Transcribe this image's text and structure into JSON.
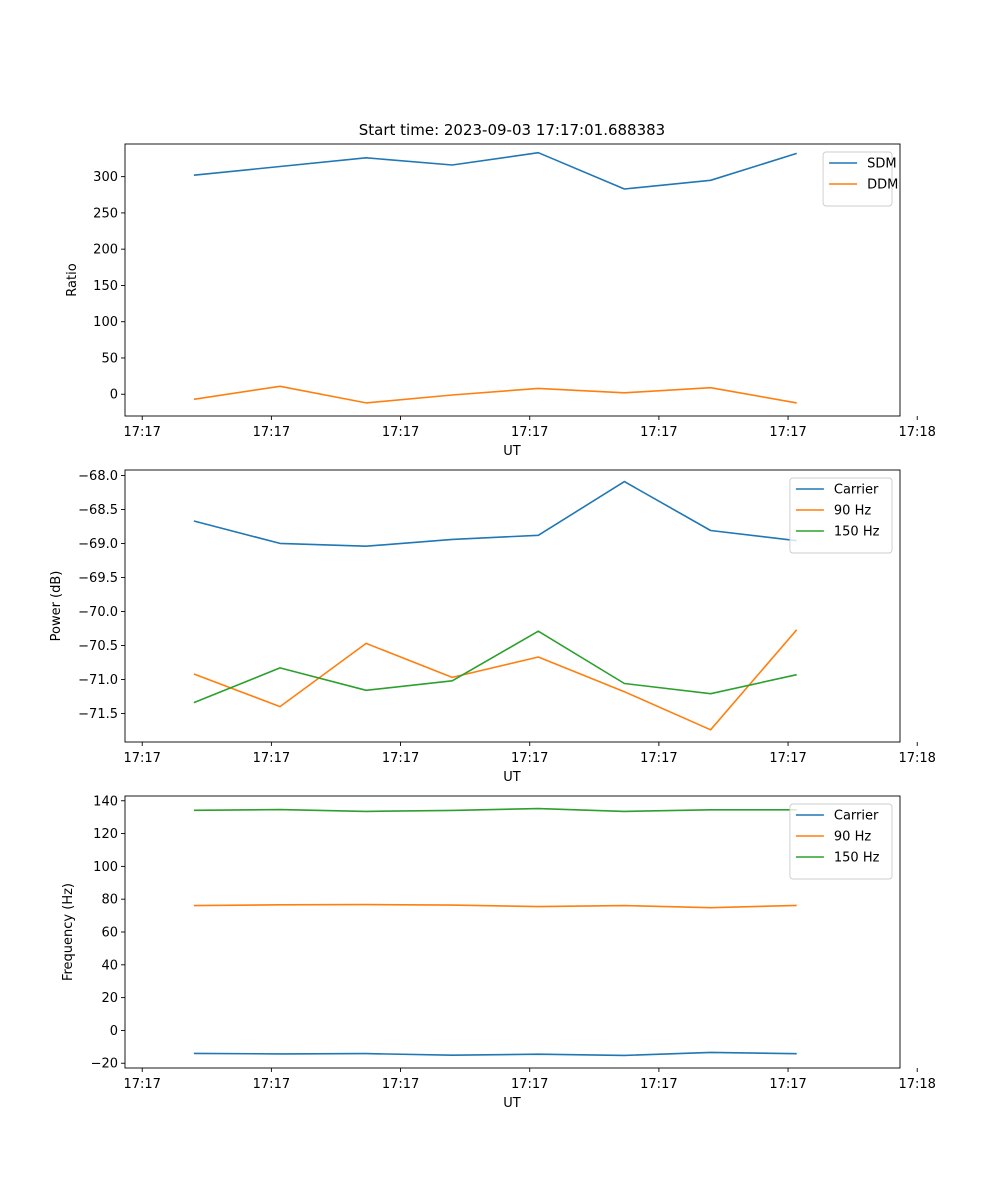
{
  "figure_title": "Start time: 2023-09-03 17:17:01.688383",
  "colors": {
    "blue": "#1f77b4",
    "orange": "#ff7f0e",
    "green": "#2ca02c"
  },
  "chart_data": [
    {
      "type": "line",
      "title": "",
      "xlabel": "UT",
      "ylabel": "Ratio",
      "x": [
        1,
        2,
        3,
        4,
        5,
        6,
        7,
        8
      ],
      "xlim": [
        0.2,
        9.2
      ],
      "x_ticks": [
        0.4,
        1.9,
        3.4,
        4.9,
        6.4,
        7.9,
        9.4
      ],
      "x_tick_labels": [
        "17:17",
        "17:17",
        "17:17",
        "17:17",
        "17:17",
        "17:17",
        "17:18"
      ],
      "ylim": [
        -30,
        345
      ],
      "y_ticks": [
        0,
        50,
        100,
        150,
        200,
        250,
        300
      ],
      "y_tick_labels": [
        "0",
        "50",
        "100",
        "150",
        "200",
        "250",
        "300"
      ],
      "legend_position": "top-right",
      "series": [
        {
          "name": "SDM",
          "color": "#1f77b4",
          "values": [
            302,
            314,
            326,
            316,
            333,
            283,
            295,
            332
          ]
        },
        {
          "name": "DDM",
          "color": "#ff7f0e",
          "values": [
            -7,
            11,
            -12,
            -1,
            8,
            2,
            9,
            -12
          ]
        }
      ]
    },
    {
      "type": "line",
      "title": "",
      "xlabel": "UT",
      "ylabel": "Power (dB)",
      "x": [
        1,
        2,
        3,
        4,
        5,
        6,
        7,
        8
      ],
      "xlim": [
        0.2,
        9.2
      ],
      "x_ticks": [
        0.4,
        1.9,
        3.4,
        4.9,
        6.4,
        7.9,
        9.4
      ],
      "x_tick_labels": [
        "17:17",
        "17:17",
        "17:17",
        "17:17",
        "17:17",
        "17:17",
        "17:18"
      ],
      "ylim": [
        -71.92,
        -67.92
      ],
      "y_ticks": [
        -71.5,
        -71.0,
        -70.5,
        -70.0,
        -69.5,
        -69.0,
        -68.5,
        -68.0
      ],
      "y_tick_labels": [
        "−71.5",
        "−71.0",
        "−70.5",
        "−70.0",
        "−69.5",
        "−69.0",
        "−68.5",
        "−68.0"
      ],
      "legend_position": "top-right",
      "series": [
        {
          "name": "Carrier",
          "color": "#1f77b4",
          "values": [
            -68.67,
            -69.0,
            -69.04,
            -68.94,
            -68.88,
            -68.09,
            -68.81,
            -68.96
          ]
        },
        {
          "name": "90 Hz",
          "color": "#ff7f0e",
          "values": [
            -70.92,
            -71.4,
            -70.47,
            -70.97,
            -70.67,
            -71.18,
            -71.74,
            -70.27
          ]
        },
        {
          "name": "150 Hz",
          "color": "#2ca02c",
          "values": [
            -71.34,
            -70.83,
            -71.16,
            -71.02,
            -70.29,
            -71.06,
            -71.21,
            -70.93
          ]
        }
      ]
    },
    {
      "type": "line",
      "title": "",
      "xlabel": "UT",
      "ylabel": "Frequency (Hz)",
      "x": [
        1,
        2,
        3,
        4,
        5,
        6,
        7,
        8
      ],
      "xlim": [
        0.2,
        9.2
      ],
      "x_ticks": [
        0.4,
        1.9,
        3.4,
        4.9,
        6.4,
        7.9,
        9.4
      ],
      "x_tick_labels": [
        "17:17",
        "17:17",
        "17:17",
        "17:17",
        "17:17",
        "17:17",
        "17:18"
      ],
      "ylim": [
        -22.9,
        142.9
      ],
      "y_ticks": [
        -20,
        0,
        20,
        40,
        60,
        80,
        100,
        120,
        140
      ],
      "y_tick_labels": [
        "−20",
        "0",
        "20",
        "40",
        "60",
        "80",
        "100",
        "120",
        "140"
      ],
      "legend_position": "top-right",
      "series": [
        {
          "name": "Carrier",
          "color": "#1f77b4",
          "values": [
            -14,
            -14.3,
            -14.1,
            -15.1,
            -14.5,
            -15.2,
            -13.4,
            -14.2
          ]
        },
        {
          "name": "90 Hz",
          "color": "#ff7f0e",
          "values": [
            76.1,
            76.6,
            76.7,
            76.4,
            75.5,
            76.1,
            74.8,
            76.2
          ]
        },
        {
          "name": "150 Hz",
          "color": "#2ca02c",
          "values": [
            134.2,
            134.6,
            133.5,
            134.1,
            135.2,
            133.5,
            134.5,
            134.5
          ]
        }
      ]
    }
  ]
}
